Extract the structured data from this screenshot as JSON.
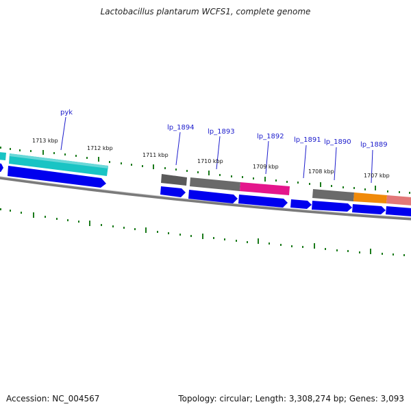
{
  "title": "Lactobacillus plantarum WCFS1, complete genome",
  "accession": "Accession: NC_004567",
  "topology": "Topology: circular; Length: 3,308,274 bp; Genes: 3,093",
  "colors": {
    "backbone": "#7a7a7a",
    "cds": "#0000ee",
    "label": "#1a1acc",
    "tick": "#1a7a1a",
    "gray_gene": "#6a6a6a",
    "cyan_gene": "#19c4c4",
    "magenta_gene": "#e4168c",
    "orange_gene": "#f08a0a",
    "salmon_gene": "#e27878"
  },
  "kbp_labels": [
    "1713 kbp",
    "1712 kbp",
    "1711 kbp",
    "1710 kbp",
    "1709 kbp",
    "1708 kbp",
    "1707 kbp"
  ],
  "genes": [
    {
      "label": "pyk",
      "color": "cyan"
    },
    {
      "label": "lp_1894",
      "color": "gray"
    },
    {
      "label": "lp_1893",
      "color": "gray"
    },
    {
      "label": "lp_1892",
      "color": "magenta"
    },
    {
      "label": "lp_1891",
      "color": "none"
    },
    {
      "label": "lp_1890",
      "color": "gray"
    },
    {
      "label": "lp_1889",
      "color": "orange"
    },
    {
      "label": "",
      "color": "salmon"
    }
  ]
}
